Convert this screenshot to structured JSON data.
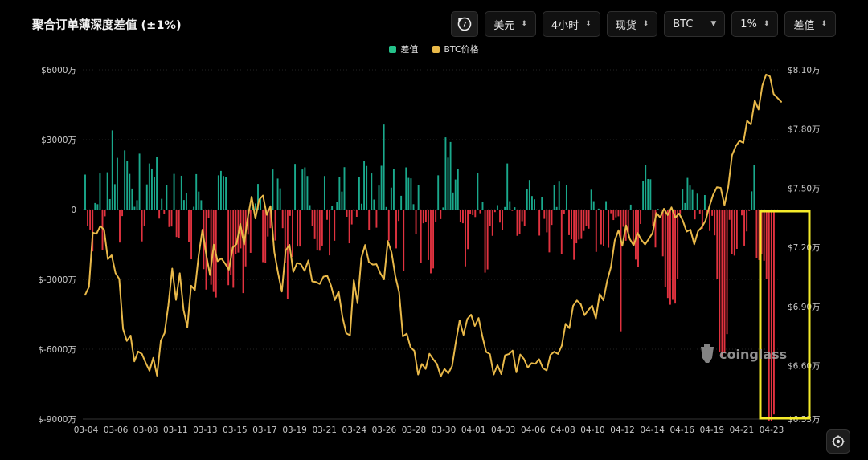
{
  "header": {
    "title": "聚合订单薄深度差值 (±1%)",
    "controls": {
      "refresh_icon": "refresh-clock-icon",
      "currency": "美元",
      "interval": "4小时",
      "market": "现货",
      "symbol": "BTC",
      "range": "1%",
      "metric": "差值"
    }
  },
  "legend": [
    {
      "label": "差值",
      "color": "#25c28a"
    },
    {
      "label": "BTC价格",
      "color": "#e9b949"
    }
  ],
  "watermark": "coinglass",
  "colors": {
    "positive": "#1aa98c",
    "negative": "#e1323f",
    "price": "#e9b949",
    "highlight": "#f5eb2a"
  },
  "chart_data": {
    "type": "bar+line",
    "title": "聚合订单薄深度差值 (±1%)",
    "x_labels": [
      "03-04",
      "03-06",
      "03-08",
      "03-11",
      "03-13",
      "03-15",
      "03-17",
      "03-19",
      "03-21",
      "03-24",
      "03-26",
      "03-28",
      "03-30",
      "04-01",
      "04-03",
      "04-06",
      "04-08",
      "04-10",
      "04-12",
      "04-14",
      "04-16",
      "04-19",
      "04-21",
      "04-23"
    ],
    "y_left_ticks": [
      "$6000万",
      "$3000万",
      "0",
      "$-3000万",
      "$-6000万",
      "$-9000万"
    ],
    "y_left_range": [
      -90000000,
      60000000
    ],
    "y_right_ticks": [
      "$8.10万",
      "$7.80万",
      "$7.50万",
      "$7.20万",
      "$6.90万",
      "$6.60万",
      "$6.33万"
    ],
    "y_right_range": [
      63300,
      81000
    ],
    "series": [
      {
        "name": "差值",
        "kind": "bar",
        "values": [
          15.0,
          -7.1,
          -8.6,
          -18.0,
          2.8,
          2.3,
          15.5,
          -17.5,
          -2.9,
          16.0,
          4.5,
          34.0,
          10.9,
          22.2,
          -14.2,
          -2.8,
          25.4,
          20.9,
          15.3,
          9.0,
          1.2,
          4.0,
          24.0,
          -13.7,
          -7.1,
          10.8,
          19.8,
          17.6,
          13.8,
          22.6,
          -3.9,
          4.6,
          -1.9,
          10.6,
          -7.5,
          -7.3,
          15.3,
          -11.8,
          -12.2,
          14.5,
          4.1,
          7.0,
          -14.0,
          -21.4,
          1.2,
          15.2,
          7.7,
          4.0,
          -25.6,
          -34.4,
          -3.6,
          -32.3,
          -35.4,
          -37.8,
          14.7,
          16.6,
          14.4,
          13.9,
          -32.5,
          -28.2,
          -33.6,
          -19.0,
          -18.5,
          -16.7,
          -35.9,
          -24.4,
          -10.8,
          -18.6,
          1.2,
          2.6,
          11.0,
          5.5,
          -22.6,
          -22.9,
          -11.6,
          -8.0,
          17.2,
          -13.3,
          13.3,
          9.1,
          -8.0,
          -22.9,
          -38.6,
          -2.7,
          -20.4,
          19.6,
          -15.9,
          -15.9,
          17.2,
          18.1,
          14.4,
          1.9,
          -6.9,
          -12.7,
          -17.6,
          -17.7,
          -15.5,
          14.4,
          -4.4,
          -19.7,
          1.4,
          -13.4,
          3.2,
          13.9,
          7.7,
          18.2,
          -3.1,
          -14.5,
          -6.4,
          -0.5,
          -3.1,
          14.0,
          2.5,
          21.0,
          18.7,
          -8.7,
          15.5,
          4.3,
          -7.8,
          10.3,
          18.8,
          36.5,
          1.1,
          -13.4,
          9.4,
          17.3,
          -16.7,
          -4.9,
          5.9,
          -26.4,
          18.1,
          13.6,
          13.4,
          2.3,
          -10.7,
          10.5,
          -23.0,
          -5.9,
          -5.4,
          -21.7,
          -27.4,
          -25.3,
          -5.2,
          14.7,
          -4.1,
          0.9,
          31.0,
          22.3,
          29.0,
          7.3,
          12.9,
          17.4,
          -5.3,
          -5.9,
          -24.4,
          -17.0,
          -1.8,
          -2.4,
          -3.2,
          15.8,
          -1.6,
          3.3,
          -27.1,
          -25.7,
          -7.1,
          -11.3,
          -1.1,
          1.9,
          -5.6,
          -8.8,
          1.1,
          19.8,
          3.6,
          -0.6,
          1.0,
          -11.3,
          -10.5,
          -5.0,
          -7.1,
          8.9,
          12.7,
          5.8,
          4.4,
          -0.3,
          -11.2,
          5.2,
          -4.0,
          -9.8,
          -18.4,
          -6.6,
          10.4,
          1.1,
          12.0,
          -19.2,
          -2.0,
          10.6,
          -11.0,
          -12.8,
          -21.6,
          -14.5,
          -12.9,
          -12.6,
          -9.2,
          -7.2,
          -8.2,
          8.5,
          3.6,
          -18.2,
          0.4,
          -15.0,
          -15.8,
          3.6,
          -16.4,
          -1.6,
          -4.5,
          -3.3,
          -2.9,
          -52.3,
          -7.4,
          -13.4,
          -9.8,
          2.1,
          -15.8,
          -21.5,
          -24.6,
          -6.2,
          12.1,
          19.2,
          13.1,
          13.0,
          -7.1,
          -16.3,
          0.3,
          -0.4,
          -20.1,
          -33.4,
          -38.0,
          -40.9,
          -38.8,
          -40.4,
          -29.9,
          -1.7,
          8.6,
          2.8,
          13.6,
          10.3,
          8.4,
          -4.2,
          6.8,
          -1.7,
          -8.2,
          6.2,
          -2.0,
          -9.2,
          -2.7,
          -11.1,
          -30.0,
          -61.2,
          -62.8,
          -61.7,
          -53.5,
          -4.4,
          -19.0,
          -19.8,
          -16.9,
          -0.4,
          -2.5,
          -15.5,
          -9.4,
          -0.6,
          7.8,
          19.1,
          -21.0,
          -21.7,
          -19.0,
          -22.0,
          -30.0,
          -91.0,
          -91.0,
          -88.0,
          -1.1
        ],
        "unit": "百万美元"
      },
      {
        "name": "BTC价格",
        "kind": "line",
        "values": [
          69600,
          70000,
          72750,
          72690,
          73080,
          72900,
          71400,
          71600,
          70700,
          70400,
          67870,
          67260,
          67530,
          66220,
          66720,
          66600,
          66150,
          65750,
          66400,
          65500,
          67270,
          67660,
          69070,
          70930,
          69340,
          70690,
          68830,
          67950,
          70060,
          69840,
          71600,
          72900,
          71620,
          70600,
          72140,
          71300,
          71440,
          71180,
          70870,
          71990,
          72170,
          73190,
          72150,
          73540,
          74570,
          73470,
          74420,
          74630,
          73650,
          74090,
          71770,
          70700,
          69760,
          71840,
          72130,
          70760,
          71210,
          71150,
          70810,
          71340,
          70280,
          70250,
          70150,
          70520,
          70560,
          70060,
          69330,
          69770,
          68490,
          67650,
          67550,
          70340,
          69170,
          71470,
          72120,
          71260,
          71130,
          71150,
          70700,
          70380,
          72320,
          71740,
          70550,
          69720,
          67490,
          67630,
          66940,
          66760,
          65560,
          66090,
          65840,
          66610,
          66330,
          66090,
          65460,
          65840,
          65610,
          65980,
          67210,
          68300,
          67570,
          68370,
          68590,
          68020,
          68420,
          67490,
          66700,
          66590,
          65560,
          66030,
          65580,
          66530,
          66590,
          66770,
          65670,
          66570,
          66340,
          65910,
          66130,
          66100,
          66330,
          65880,
          65760,
          66550,
          66710,
          66600,
          67020,
          68130,
          67910,
          69040,
          69310,
          69120,
          68560,
          68820,
          69050,
          68400,
          69640,
          69320,
          70310,
          71010,
          72350,
          72870,
          72080,
          73120,
          72420,
          72100,
          72730,
          72390,
          72150,
          72430,
          72730,
          73740,
          73520,
          73960,
          73640,
          74030,
          73510,
          73720,
          73360,
          72800,
          72900,
          72160,
          72820,
          73030,
          73360,
          74070,
          74670,
          75050,
          75020,
          74140,
          75070,
          76670,
          77130,
          77400,
          77300,
          78420,
          78230,
          79450,
          78990,
          80200,
          80760,
          80670,
          79770,
          79580,
          79380
        ],
        "unit": "美元"
      }
    ],
    "annotation": {
      "type": "highlight-box",
      "range": [
        "04-21",
        "04-23"
      ],
      "color": "#f5eb2a"
    },
    "grid": {
      "horizontal": true,
      "style": "dotted"
    },
    "legend_position": "top-center"
  }
}
